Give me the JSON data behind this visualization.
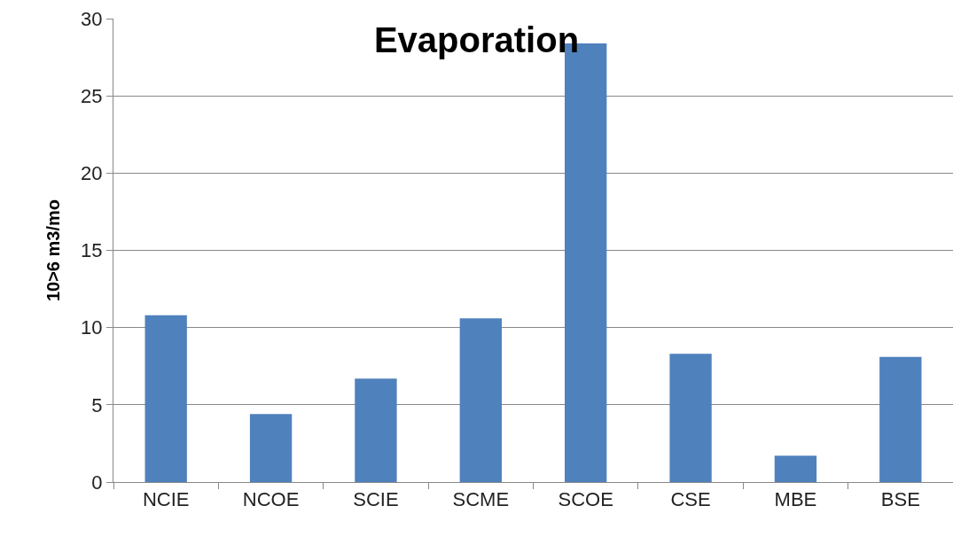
{
  "chart_data": {
    "type": "bar",
    "title": "Evaporation",
    "ylabel": "10>6 m3/mo",
    "categories": [
      "NCIE",
      "NCOE",
      "SCIE",
      "SCME",
      "SCOE",
      "CSE",
      "MBE",
      "BSE"
    ],
    "values": [
      10.8,
      4.4,
      6.7,
      10.6,
      28.4,
      8.3,
      1.7,
      8.1
    ],
    "color": "#4f81bd",
    "ylim": [
      0,
      30
    ],
    "yticks": [
      0,
      5,
      10,
      15,
      20,
      25,
      30
    ],
    "grid": "y",
    "legend": false
  }
}
